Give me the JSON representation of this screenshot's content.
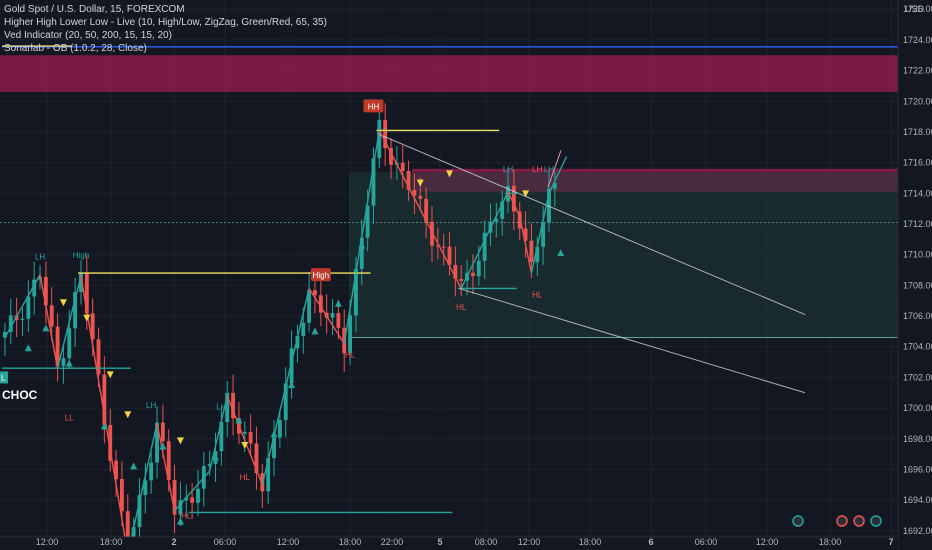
{
  "legend": {
    "line1": "Gold Spot / U.S. Dollar, 15, FOREXCOM",
    "line2": "Higher High Lower Low - Live (10, High/Low, ZigZag, Green/Red, 65, 35)",
    "line3": "Ved Indicator (20, 50, 200, 15, 15, 20)",
    "line4": "Sonarlab - OB (1.0.2, 28, Close)"
  },
  "colors": {
    "background": "#131722",
    "grid": "#1e222d",
    "up": "#26a69a",
    "down": "#ef5350",
    "zigzag_up": "#26a69a",
    "zigzag_down": "#ef5350",
    "supply": "#8e1b4b",
    "demand": "#1f3b3a",
    "level_yellow": "#f0e060",
    "level_blue": "#2962ff",
    "trend": "#d1d4dc"
  },
  "chart_data": {
    "type": "candlestick",
    "title": "Gold Spot / U.S. Dollar, 15, FOREXCOM",
    "currency": "USD",
    "ylim": [
      1691.6,
      1726.6
    ],
    "y_ticks": [
      "1692.00",
      "1694.00",
      "1696.00",
      "1698.00",
      "1700.00",
      "1702.00",
      "1704.00",
      "1706.00",
      "1708.00",
      "1710.00",
      "1712.00",
      "1714.00",
      "1716.00",
      "1718.00",
      "1720.00",
      "1722.00",
      "1724.00",
      "1726.00"
    ],
    "x_ticks": [
      "12:00",
      "18:00",
      "2",
      "06:00",
      "12:00",
      "18:00",
      "22:00",
      "5",
      "08:00",
      "12:00",
      "18:00",
      "6",
      "06:00",
      "12:00",
      "18:00",
      "7"
    ],
    "last_price": "1712.14",
    "countdown": "08:52",
    "blue_level": "1723.55",
    "zigzag": [
      {
        "x": 0,
        "y": 1704.6
      },
      {
        "x": 6,
        "y": 1708.7
      },
      {
        "x": 9,
        "y": 1702.6
      },
      {
        "x": 13,
        "y": 1708.6
      },
      {
        "x": 21,
        "y": 1690.5
      },
      {
        "x": 26,
        "y": 1699.0
      },
      {
        "x": 29,
        "y": 1693.3
      },
      {
        "x": 35,
        "y": 1695.9
      },
      {
        "x": 38,
        "y": 1700.8
      },
      {
        "x": 44,
        "y": 1695.0
      },
      {
        "x": 52,
        "y": 1707.8
      },
      {
        "x": 58,
        "y": 1704.2
      },
      {
        "x": 64,
        "y": 1718.1
      },
      {
        "x": 78,
        "y": 1707.8
      },
      {
        "x": 86,
        "y": 1714.1
      },
      {
        "x": 88,
        "y": 1712.5
      },
      {
        "x": 90,
        "y": 1708.8
      },
      {
        "x": 93,
        "y": 1714.0
      },
      {
        "x": 96,
        "y": 1716.4
      }
    ],
    "pivot_labels": [
      {
        "text": "LH",
        "x": 6,
        "y": 1709.7,
        "color": "up"
      },
      {
        "text": "High",
        "x": 13,
        "y": 1709.8,
        "color": "up"
      },
      {
        "text": "LL",
        "x": 11,
        "y": 1699.2,
        "color": "down"
      },
      {
        "text": "LH",
        "x": 25,
        "y": 1700.0,
        "color": "up"
      },
      {
        "text": "HL",
        "x": 31,
        "y": 1692.8,
        "color": "down"
      },
      {
        "text": "LH",
        "x": 37,
        "y": 1699.9,
        "color": "up"
      },
      {
        "text": "HL",
        "x": 41,
        "y": 1695.3,
        "color": "down"
      },
      {
        "text": "HL",
        "x": 59,
        "y": 1703.3,
        "color": "down"
      },
      {
        "text": "LH",
        "x": 86,
        "y": 1715.4,
        "color": "up"
      },
      {
        "text": "HL",
        "x": 78,
        "y": 1706.4,
        "color": "down"
      },
      {
        "text": "HL",
        "x": 91,
        "y": 1707.2,
        "color": "down"
      },
      {
        "text": "LH",
        "x": 93,
        "y": 1715.4,
        "color": "up"
      },
      {
        "text": "LH",
        "x": 91,
        "y": 1715.4,
        "color": "down"
      }
    ],
    "badges": [
      {
        "text": "High",
        "x": 54,
        "y": 1708.6
      },
      {
        "text": "HH",
        "x": 63,
        "y": 1719.6
      }
    ],
    "choc_label": "CHOC",
    "l_label": "L",
    "levels": [
      {
        "name": "blue",
        "y": 1723.55,
        "x1": 0,
        "x2": 152
      },
      {
        "name": "yellow-top-left",
        "y": 1723.6,
        "x1": 0,
        "x2": 12
      },
      {
        "name": "yellow-high-1",
        "y": 1708.8,
        "x1": 13,
        "x2": 63
      },
      {
        "name": "yellow-hh",
        "y": 1718.1,
        "x1": 64,
        "x2": 85
      },
      {
        "name": "green-choc",
        "y": 1702.6,
        "x1": 0,
        "x2": 22
      },
      {
        "name": "green-hl-1",
        "y": 1693.2,
        "x1": 32,
        "x2": 77
      },
      {
        "name": "green-hl-2",
        "y": 1707.8,
        "x1": 78,
        "x2": 88
      },
      {
        "name": "green-lh-2",
        "y": 1714.0,
        "x1": 86,
        "x2": 88
      }
    ]
  }
}
